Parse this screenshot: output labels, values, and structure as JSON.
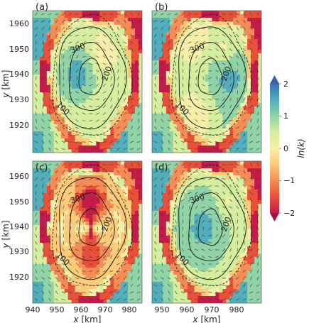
{
  "panels": [
    {
      "label": "(a)",
      "variant": 0
    },
    {
      "label": "(b)",
      "variant": 1
    },
    {
      "label": "(c)",
      "variant": 2
    },
    {
      "label": "(d)",
      "variant": 3
    }
  ],
  "axes": {
    "x_label_var": "x",
    "x_label_unit": "[km]",
    "y_label_var": "y",
    "y_label_unit": "[km]",
    "x_ticks": [
      "940",
      "950",
      "960",
      "970",
      "980"
    ],
    "y_ticks": [
      "1920",
      "1930",
      "1940",
      "1950",
      "1960"
    ]
  },
  "contour_labels": [
    "300",
    "200",
    "100"
  ],
  "colorbar": {
    "label": "ln(k)",
    "ticks": [
      "2",
      "1",
      "0",
      "−1",
      "−2"
    ],
    "colors": [
      "#c51b4a",
      "#e8503a",
      "#f58c55",
      "#fbcb7a",
      "#f5eea8",
      "#d5ee9e",
      "#90d3a6",
      "#52aeba",
      "#3a73b4"
    ]
  }
}
